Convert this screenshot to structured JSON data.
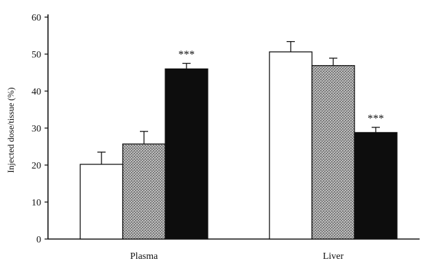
{
  "chart_data": {
    "type": "bar",
    "title": "",
    "xlabel": "",
    "ylabel": "Injected dose/tissue (%)",
    "categories": [
      "Plasma",
      "Liver"
    ],
    "ylim": [
      0,
      60
    ],
    "yticks": [
      0,
      10,
      20,
      30,
      40,
      50,
      60
    ],
    "grid": false,
    "legend": "none",
    "series": [
      {
        "values": [
          20.2,
          50.6
        ],
        "errors": [
          3.3,
          2.8
        ],
        "fill": "#ffffff",
        "pattern": "none"
      },
      {
        "values": [
          25.7,
          46.9
        ],
        "errors": [
          3.4,
          2.0
        ],
        "fill": "#9a9a9a",
        "pattern": "stipple"
      },
      {
        "values": [
          46.0,
          28.8
        ],
        "errors": [
          1.5,
          1.4
        ],
        "fill": "#0d0d0d",
        "pattern": "none"
      }
    ],
    "annotations": [
      {
        "category": "Plasma",
        "series": 2,
        "text": "***"
      },
      {
        "category": "Liver",
        "series": 2,
        "text": "***"
      }
    ]
  }
}
